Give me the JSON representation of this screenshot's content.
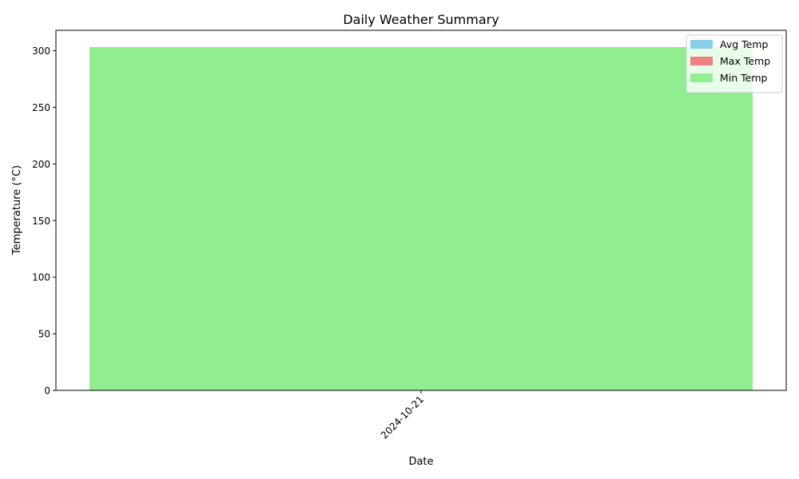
{
  "chart_data": {
    "type": "bar",
    "title": "Daily Weather Summary",
    "xlabel": "Date",
    "ylabel": "Temperature (°C)",
    "categories": [
      "2024-10-21"
    ],
    "series": [
      {
        "name": "Avg Temp",
        "values": [
          303
        ],
        "color": "#87ceeb"
      },
      {
        "name": "Max Temp",
        "values": [
          303
        ],
        "color": "#f08080"
      },
      {
        "name": "Min Temp",
        "values": [
          303
        ],
        "color": "#90ee90"
      }
    ],
    "ylim": [
      0,
      318
    ],
    "yticks": [
      "0",
      "50",
      "100",
      "150",
      "200",
      "250",
      "300"
    ],
    "grid": false,
    "legend_position": "top-right"
  }
}
